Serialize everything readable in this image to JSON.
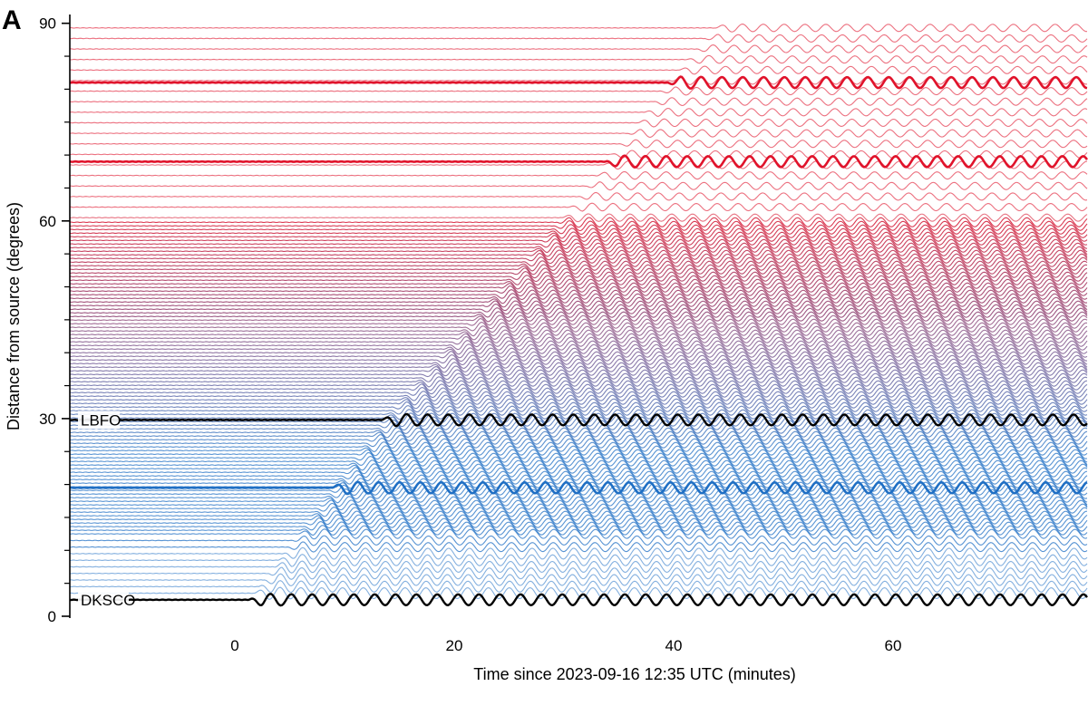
{
  "panel_label": "A",
  "chart_data": {
    "type": "line",
    "subtype": "seismogram record section",
    "title": "",
    "xlabel": "Time since 2023-09-16 12:35 UTC (minutes)",
    "ylabel": "Distance from source (degrees)",
    "xlim": [
      -15,
      77
    ],
    "ylim": [
      0,
      90
    ],
    "xticks": [
      0,
      20,
      40,
      60
    ],
    "yticks": [
      0,
      30,
      60,
      90
    ],
    "grid": false,
    "legend": "none",
    "color_scale": {
      "low_distance_color": "#1f6fc4",
      "high_distance_color": "#e0132b",
      "highlight_color": "#000000"
    },
    "signal": {
      "period_minutes": 1.9,
      "onset_at_2_5_deg_minutes": 1.3,
      "onset_at_30_deg_minutes": 13.5,
      "onset_at_60_deg_minutes": 29.5,
      "onset_at_81_deg_minutes": 39.5
    },
    "highlighted_traces": [
      {
        "name": "LBFO",
        "distance": 29.8
      },
      {
        "name": "DKSCO",
        "distance": 2.5
      }
    ],
    "bold_colored_traces": [
      19.5,
      69.0,
      81.0
    ]
  }
}
